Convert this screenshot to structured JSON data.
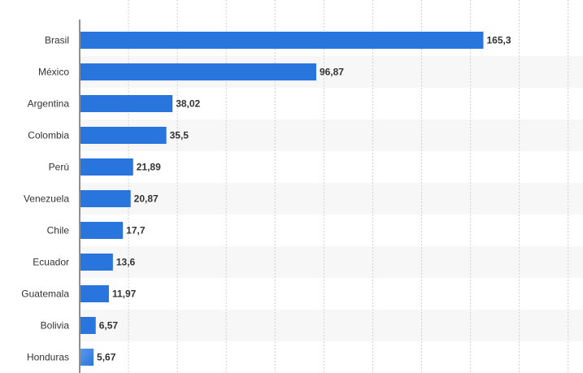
{
  "chart_data": {
    "type": "bar",
    "orientation": "horizontal",
    "categories": [
      "Brasil",
      "México",
      "Argentina",
      "Colombia",
      "Perú",
      "Venezuela",
      "Chile",
      "Ecuador",
      "Guatemala",
      "Bolivia",
      "Honduras"
    ],
    "values": [
      165.3,
      96.87,
      38.02,
      35.5,
      21.89,
      20.87,
      17.7,
      13.6,
      11.97,
      6.57,
      5.67
    ],
    "value_labels": [
      "165,3",
      "96,87",
      "38,02",
      "35,5",
      "21,89",
      "20,87",
      "17,7",
      "13,6",
      "11,97",
      "6,57",
      "5,67"
    ],
    "title": "",
    "xlabel": "",
    "ylabel": "",
    "xlim": [
      0,
      200
    ],
    "grid": "vertical dotted",
    "legend": "none",
    "colors": {
      "bar": "#2876dd",
      "bar_highlight": "#5b99ea",
      "stripe": "#f7f7f7",
      "gridline": "#d0d0d0",
      "axis": "#222222",
      "category_text": "#333333",
      "value_text": "#333333"
    }
  }
}
